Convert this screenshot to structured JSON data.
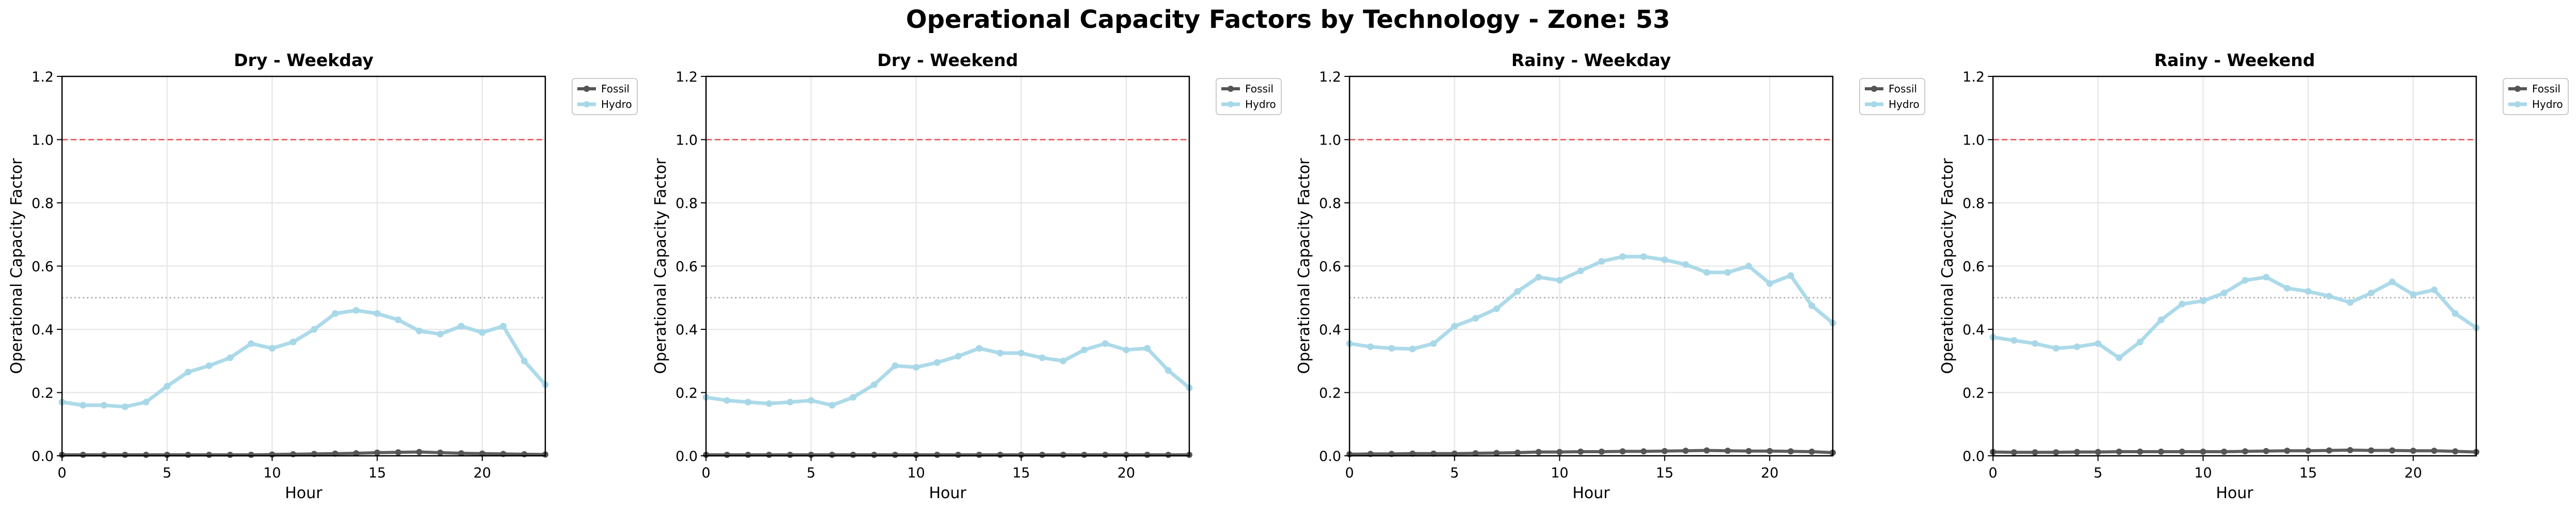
{
  "figure": {
    "title": "Operational Capacity Factors by Technology - Zone: 53"
  },
  "chart_data": [
    {
      "type": "line",
      "title": "Dry - Weekday",
      "xlabel": "Hour",
      "ylabel": "Operational Capacity Factor",
      "xlim": [
        0,
        23
      ],
      "ylim": [
        0,
        1.2
      ],
      "xticks": [
        0,
        5,
        10,
        15,
        20
      ],
      "yticks": [
        0.0,
        0.2,
        0.4,
        0.6,
        0.8,
        1.0,
        1.2
      ],
      "grid": true,
      "legend": "outside-upper-right",
      "reference_lines": [
        {
          "y": 1.0,
          "style": "dashed",
          "color": "#e8696b"
        },
        {
          "y": 0.5,
          "style": "dotted",
          "color": "#aaaaaa"
        }
      ],
      "x": [
        0,
        1,
        2,
        3,
        4,
        5,
        6,
        7,
        8,
        9,
        10,
        11,
        12,
        13,
        14,
        15,
        16,
        17,
        18,
        19,
        20,
        21,
        22,
        23
      ],
      "series": [
        {
          "name": "Fossil",
          "color": "#555555",
          "values": [
            0.003,
            0.003,
            0.003,
            0.003,
            0.003,
            0.003,
            0.003,
            0.003,
            0.003,
            0.003,
            0.004,
            0.005,
            0.006,
            0.007,
            0.008,
            0.01,
            0.011,
            0.012,
            0.01,
            0.008,
            0.007,
            0.006,
            0.005,
            0.004
          ]
        },
        {
          "name": "Hydro",
          "color": "#a8d8e8",
          "values": [
            0.17,
            0.16,
            0.16,
            0.155,
            0.17,
            0.22,
            0.265,
            0.285,
            0.31,
            0.355,
            0.34,
            0.36,
            0.4,
            0.45,
            0.46,
            0.45,
            0.43,
            0.395,
            0.385,
            0.41,
            0.39,
            0.41,
            0.3,
            0.225
          ]
        }
      ]
    },
    {
      "type": "line",
      "title": "Dry - Weekend",
      "xlabel": "Hour",
      "ylabel": "Operational Capacity Factor",
      "xlim": [
        0,
        23
      ],
      "ylim": [
        0,
        1.2
      ],
      "xticks": [
        0,
        5,
        10,
        15,
        20
      ],
      "yticks": [
        0.0,
        0.2,
        0.4,
        0.6,
        0.8,
        1.0,
        1.2
      ],
      "grid": true,
      "legend": "outside-upper-right",
      "reference_lines": [
        {
          "y": 1.0,
          "style": "dashed",
          "color": "#e8696b"
        },
        {
          "y": 0.5,
          "style": "dotted",
          "color": "#aaaaaa"
        }
      ],
      "x": [
        0,
        1,
        2,
        3,
        4,
        5,
        6,
        7,
        8,
        9,
        10,
        11,
        12,
        13,
        14,
        15,
        16,
        17,
        18,
        19,
        20,
        21,
        22,
        23
      ],
      "series": [
        {
          "name": "Fossil",
          "color": "#555555",
          "values": [
            0.003,
            0.003,
            0.003,
            0.003,
            0.003,
            0.003,
            0.003,
            0.003,
            0.003,
            0.003,
            0.003,
            0.003,
            0.003,
            0.003,
            0.003,
            0.003,
            0.003,
            0.003,
            0.003,
            0.003,
            0.003,
            0.003,
            0.003,
            0.003
          ]
        },
        {
          "name": "Hydro",
          "color": "#a8d8e8",
          "values": [
            0.185,
            0.175,
            0.17,
            0.165,
            0.17,
            0.175,
            0.16,
            0.185,
            0.225,
            0.285,
            0.28,
            0.295,
            0.315,
            0.34,
            0.325,
            0.325,
            0.31,
            0.3,
            0.335,
            0.355,
            0.335,
            0.34,
            0.27,
            0.215
          ]
        }
      ]
    },
    {
      "type": "line",
      "title": "Rainy - Weekday",
      "xlabel": "Hour",
      "ylabel": "Operational Capacity Factor",
      "xlim": [
        0,
        23
      ],
      "ylim": [
        0,
        1.2
      ],
      "xticks": [
        0,
        5,
        10,
        15,
        20
      ],
      "yticks": [
        0.0,
        0.2,
        0.4,
        0.6,
        0.8,
        1.0,
        1.2
      ],
      "grid": true,
      "legend": "outside-upper-right",
      "reference_lines": [
        {
          "y": 1.0,
          "style": "dashed",
          "color": "#e8696b"
        },
        {
          "y": 0.5,
          "style": "dotted",
          "color": "#aaaaaa"
        }
      ],
      "x": [
        0,
        1,
        2,
        3,
        4,
        5,
        6,
        7,
        8,
        9,
        10,
        11,
        12,
        13,
        14,
        15,
        16,
        17,
        18,
        19,
        20,
        21,
        22,
        23
      ],
      "series": [
        {
          "name": "Fossil",
          "color": "#555555",
          "values": [
            0.005,
            0.006,
            0.006,
            0.007,
            0.007,
            0.007,
            0.008,
            0.009,
            0.01,
            0.012,
            0.012,
            0.013,
            0.013,
            0.014,
            0.014,
            0.015,
            0.016,
            0.017,
            0.016,
            0.015,
            0.015,
            0.014,
            0.013,
            0.01
          ]
        },
        {
          "name": "Hydro",
          "color": "#a8d8e8",
          "values": [
            0.355,
            0.345,
            0.34,
            0.338,
            0.355,
            0.41,
            0.435,
            0.465,
            0.52,
            0.565,
            0.555,
            0.585,
            0.615,
            0.63,
            0.63,
            0.62,
            0.605,
            0.58,
            0.58,
            0.6,
            0.545,
            0.57,
            0.475,
            0.42
          ]
        }
      ]
    },
    {
      "type": "line",
      "title": "Rainy - Weekend",
      "xlabel": "Hour",
      "ylabel": "Operational Capacity Factor",
      "xlim": [
        0,
        23
      ],
      "ylim": [
        0,
        1.2
      ],
      "xticks": [
        0,
        5,
        10,
        15,
        20
      ],
      "yticks": [
        0.0,
        0.2,
        0.4,
        0.6,
        0.8,
        1.0,
        1.2
      ],
      "grid": true,
      "legend": "outside-upper-right",
      "reference_lines": [
        {
          "y": 1.0,
          "style": "dashed",
          "color": "#e8696b"
        },
        {
          "y": 0.5,
          "style": "dotted",
          "color": "#aaaaaa"
        }
      ],
      "x": [
        0,
        1,
        2,
        3,
        4,
        5,
        6,
        7,
        8,
        9,
        10,
        11,
        12,
        13,
        14,
        15,
        16,
        17,
        18,
        19,
        20,
        21,
        22,
        23
      ],
      "series": [
        {
          "name": "Fossil",
          "color": "#555555",
          "values": [
            0.012,
            0.011,
            0.011,
            0.011,
            0.012,
            0.012,
            0.013,
            0.013,
            0.013,
            0.013,
            0.013,
            0.013,
            0.014,
            0.015,
            0.016,
            0.016,
            0.017,
            0.018,
            0.017,
            0.017,
            0.016,
            0.016,
            0.014,
            0.012
          ]
        },
        {
          "name": "Hydro",
          "color": "#a8d8e8",
          "values": [
            0.375,
            0.365,
            0.355,
            0.34,
            0.345,
            0.355,
            0.31,
            0.36,
            0.43,
            0.48,
            0.49,
            0.515,
            0.555,
            0.565,
            0.53,
            0.52,
            0.505,
            0.485,
            0.515,
            0.55,
            0.51,
            0.525,
            0.45,
            0.405
          ]
        }
      ]
    }
  ]
}
